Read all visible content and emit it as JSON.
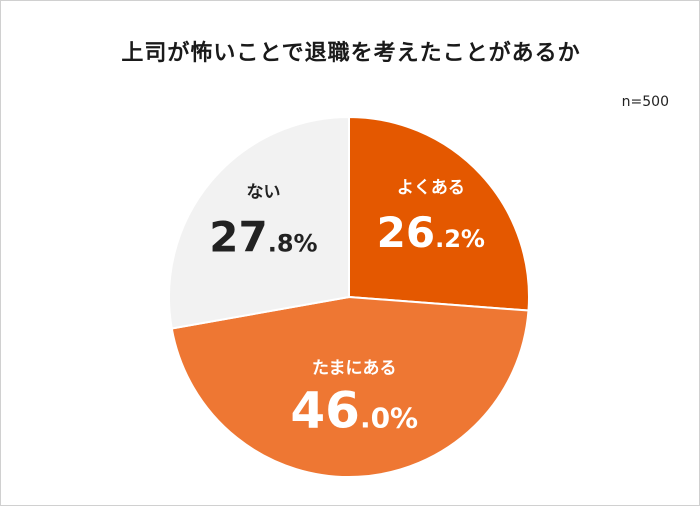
{
  "title": "上司が怖いことで退職を考えたことがあるか",
  "sample_size": "n=500",
  "colors": {
    "yoku_aru": "#E45800",
    "tama_ni_aru": "#EE7733",
    "nai": "#F2F2F2",
    "label_light": "#ffffff",
    "label_dark": "#222222"
  },
  "chart_data": {
    "type": "pie",
    "title": "上司が怖いことで退職を考えたことがあるか",
    "start": "12 o'clock",
    "direction": "clockwise",
    "slices": [
      {
        "label": "よくある",
        "value": 26.2,
        "value_main": "26",
        "value_decimal": ".2%",
        "color": "#E45800",
        "text_color": "#ffffff"
      },
      {
        "label": "たまにある",
        "value": 46.0,
        "value_main": "46",
        "value_decimal": ".0%",
        "color": "#EE7733",
        "text_color": "#ffffff"
      },
      {
        "label": "ない",
        "value": 27.8,
        "value_main": "27",
        "value_decimal": ".8%",
        "color": "#F2F2F2",
        "text_color": "#222222"
      }
    ]
  }
}
